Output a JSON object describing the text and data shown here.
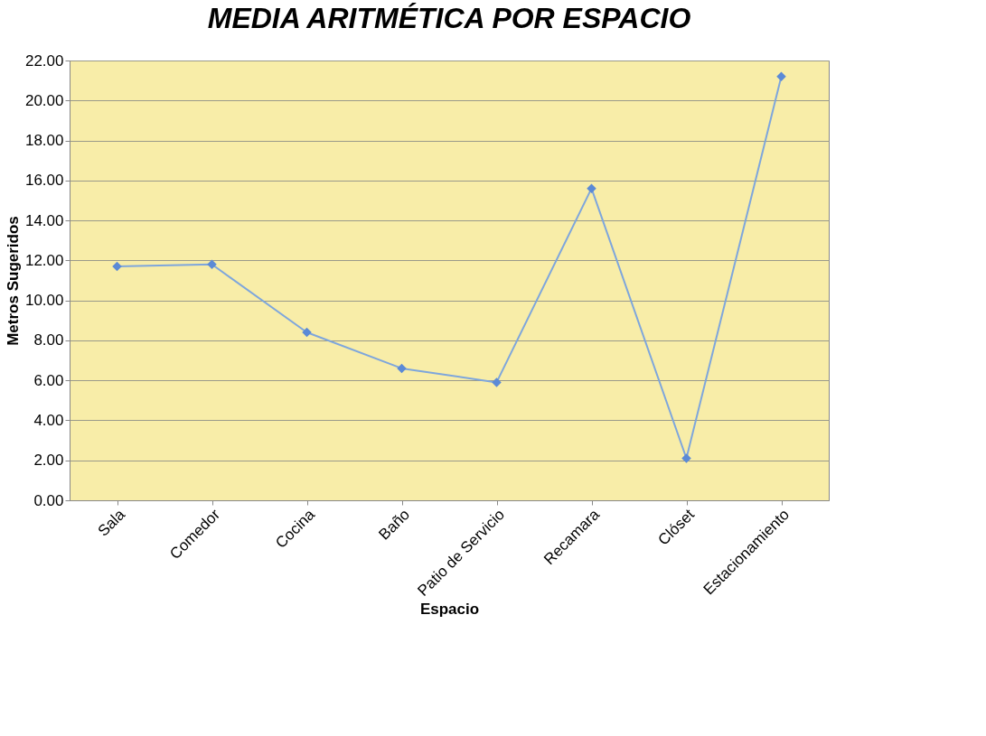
{
  "chart_data": {
    "type": "line",
    "title": "MEDIA ARITMÉTICA POR ESPACIO",
    "xlabel": "Espacio",
    "ylabel": "Metros Sugeridos",
    "categories": [
      "Sala",
      "Comedor",
      "Cocina",
      "Baño",
      "Patio de Servicio",
      "Recamara",
      "Clóset",
      "Estacionamiento"
    ],
    "series": [
      {
        "color": "#7ea6dc",
        "values": [
          11.7,
          11.8,
          8.4,
          6.6,
          5.9,
          15.6,
          2.1,
          21.2
        ]
      }
    ],
    "ylim": [
      0,
      22
    ],
    "yticks": [
      {
        "value": 0,
        "label": "0.00"
      },
      {
        "value": 2,
        "label": "2.00"
      },
      {
        "value": 4,
        "label": "4.00"
      },
      {
        "value": 6,
        "label": "6.00"
      },
      {
        "value": 8,
        "label": "8.00"
      },
      {
        "value": 10,
        "label": "10.00"
      },
      {
        "value": 12,
        "label": "12.00"
      },
      {
        "value": 14,
        "label": "14.00"
      },
      {
        "value": 16,
        "label": "16.00"
      },
      {
        "value": 18,
        "label": "18.00"
      },
      {
        "value": 20,
        "label": "20.00"
      },
      {
        "value": 22,
        "label": "22.00"
      }
    ],
    "grid": "y",
    "marker": "diamond",
    "line_style": "solid"
  }
}
